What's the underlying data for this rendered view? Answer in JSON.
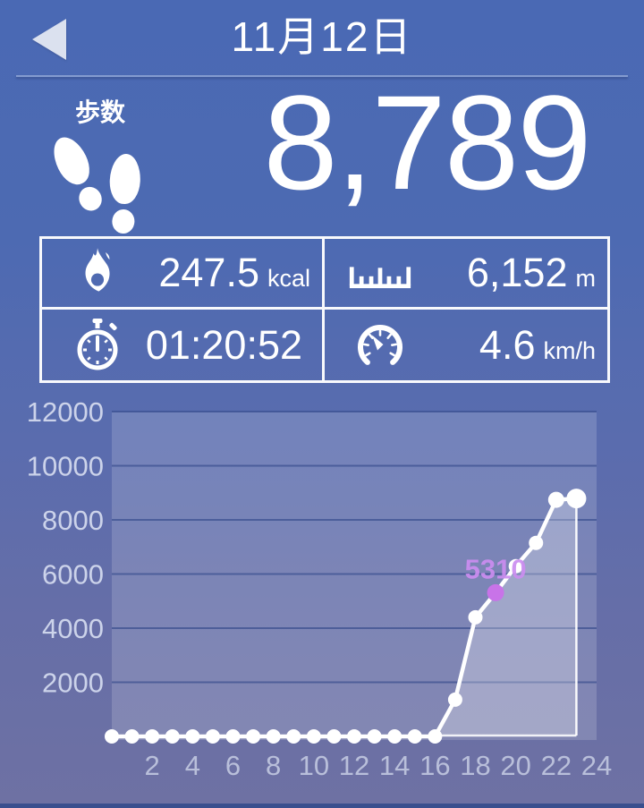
{
  "header": {
    "title": "11月12日",
    "back_icon": "back-arrow-icon"
  },
  "steps": {
    "label": "歩数",
    "value": "8,789"
  },
  "stats": [
    {
      "icon": "flame-icon",
      "value": "247.5",
      "unit": "kcal"
    },
    {
      "icon": "ruler-icon",
      "value": "6,152",
      "unit": "m"
    },
    {
      "icon": "stopwatch-icon",
      "value": "01:20:52",
      "unit": ""
    },
    {
      "icon": "speedometer-icon",
      "value": "4.6",
      "unit": "km/h"
    }
  ],
  "colors": {
    "bg_top": "#4a69b4",
    "bg_bottom": "#6e71a3",
    "line": "#ffffff",
    "highlight": "#c873e8",
    "highlight_label": "#cb8df0",
    "gridline": "#2f4487",
    "y_tick_label": "#ccd3ea",
    "x_tick_label": "#b9bfda",
    "panel_fill": "rgba(255,255,255,0.16)",
    "area_fill": "rgba(255,255,255,0.27)"
  },
  "chart_data": {
    "type": "line",
    "title": "",
    "xlabel": "",
    "ylabel": "",
    "x": [
      0,
      1,
      2,
      3,
      4,
      5,
      6,
      7,
      8,
      9,
      10,
      11,
      12,
      13,
      14,
      15,
      16,
      17,
      18,
      19,
      20,
      21,
      22,
      23
    ],
    "values": [
      0,
      0,
      0,
      0,
      0,
      0,
      0,
      0,
      0,
      0,
      0,
      0,
      0,
      0,
      0,
      0,
      0,
      1360,
      4400,
      5310,
      6290,
      7150,
      8740,
      8789
    ],
    "series_name": "steps-per-day-cumulative",
    "xlim": [
      0,
      24
    ],
    "ylim": [
      0,
      12000
    ],
    "xticks": [
      2,
      4,
      6,
      8,
      10,
      12,
      14,
      16,
      18,
      20,
      22,
      24
    ],
    "yticks": [
      2000,
      4000,
      6000,
      8000,
      10000,
      12000
    ],
    "grid": true,
    "legend": false,
    "highlight": {
      "x": 19,
      "value": 5310,
      "label": "5310"
    },
    "current_time_marker_x": 23
  }
}
